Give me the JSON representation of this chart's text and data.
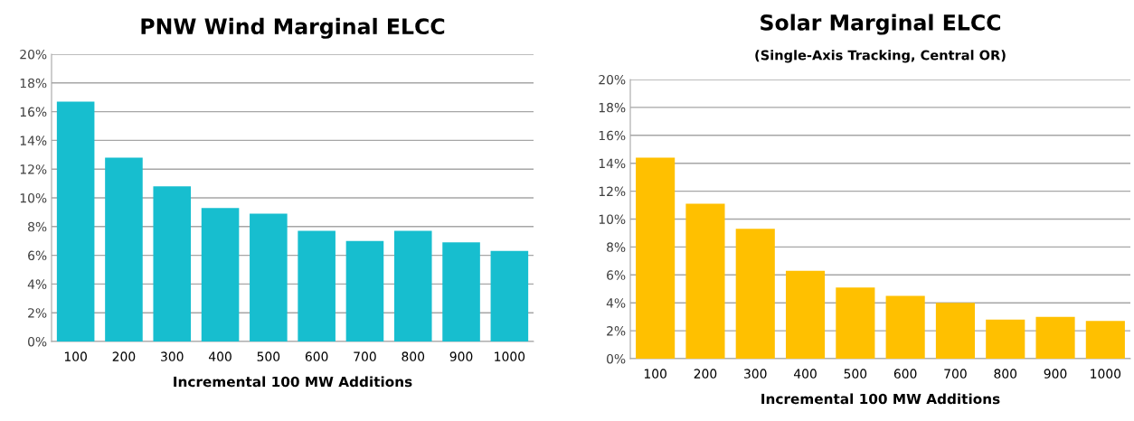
{
  "chart_data": [
    {
      "type": "bar",
      "title": "PNW Wind Marginal ELCC",
      "xlabel": "Incremental 100 MW Additions",
      "categories": [
        "100",
        "200",
        "300",
        "400",
        "500",
        "600",
        "700",
        "800",
        "900",
        "1000"
      ],
      "values": [
        16.7,
        12.8,
        10.8,
        9.3,
        8.9,
        7.7,
        7.0,
        7.7,
        6.9,
        6.3
      ],
      "color": "#17becf",
      "ylim": [
        0,
        20
      ],
      "yticks": [
        {
          "value": 0,
          "label": "0%"
        },
        {
          "value": 2,
          "label": "2%"
        },
        {
          "value": 4,
          "label": "4%"
        },
        {
          "value": 6,
          "label": "6%"
        },
        {
          "value": 8,
          "label": "8%"
        },
        {
          "value": 10,
          "label": "10%"
        },
        {
          "value": 12,
          "label": "12%"
        },
        {
          "value": 14,
          "label": "14%"
        },
        {
          "value": 16,
          "label": "16%"
        },
        {
          "value": 18,
          "label": "18%"
        },
        {
          "value": 20,
          "label": "20%"
        }
      ],
      "grid": "y"
    },
    {
      "type": "bar",
      "title": "Solar Marginal ELCC",
      "subtitle": "(Single-Axis Tracking, Central OR)",
      "xlabel": "Incremental 100 MW Additions",
      "categories": [
        "100",
        "200",
        "300",
        "400",
        "500",
        "600",
        "700",
        "800",
        "900",
        "1000"
      ],
      "values": [
        14.4,
        11.1,
        9.3,
        6.3,
        5.1,
        4.5,
        4.0,
        2.8,
        3.0,
        2.7
      ],
      "color": "#ffc000",
      "ylim": [
        0,
        20
      ],
      "yticks": [
        {
          "value": 0,
          "label": "0%"
        },
        {
          "value": 2,
          "label": "2%"
        },
        {
          "value": 4,
          "label": "4%"
        },
        {
          "value": 6,
          "label": "6%"
        },
        {
          "value": 8,
          "label": "8%"
        },
        {
          "value": 10,
          "label": "10%"
        },
        {
          "value": 12,
          "label": "12%"
        },
        {
          "value": 14,
          "label": "14%"
        },
        {
          "value": 16,
          "label": "16%"
        },
        {
          "value": 18,
          "label": "18%"
        },
        {
          "value": 20,
          "label": "20%"
        }
      ],
      "grid": "y"
    }
  ]
}
